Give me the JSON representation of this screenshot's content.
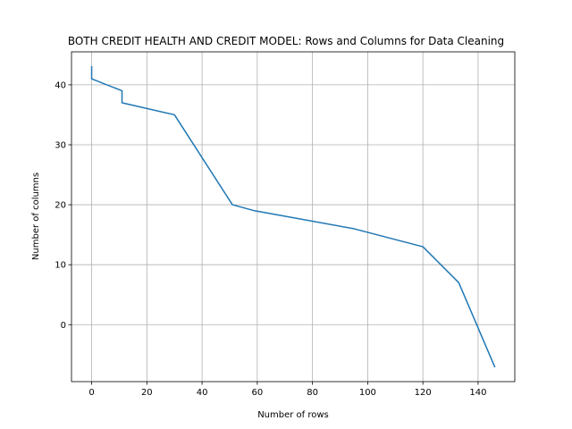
{
  "chart_data": {
    "type": "line",
    "title": "BOTH CREDIT HEALTH AND CREDIT MODEL: Rows and Columns for Data Cleaning",
    "xlabel": "Number of rows",
    "ylabel": "Number of columns",
    "xlim": [
      -7.3,
      153.3
    ],
    "ylim": [
      -9.5,
      45.5
    ],
    "xticks": [
      0,
      20,
      40,
      60,
      80,
      100,
      120,
      140
    ],
    "yticks": [
      0,
      10,
      20,
      30,
      40
    ],
    "grid": true,
    "legend": "none",
    "series": [
      {
        "color": "#1f77b4",
        "x": [
          0,
          0,
          0,
          11,
          11,
          30,
          51,
          59,
          95,
          120,
          133,
          146
        ],
        "y": [
          43,
          42,
          41,
          39,
          37,
          35,
          20,
          19,
          16,
          13,
          7,
          -7
        ]
      }
    ]
  }
}
